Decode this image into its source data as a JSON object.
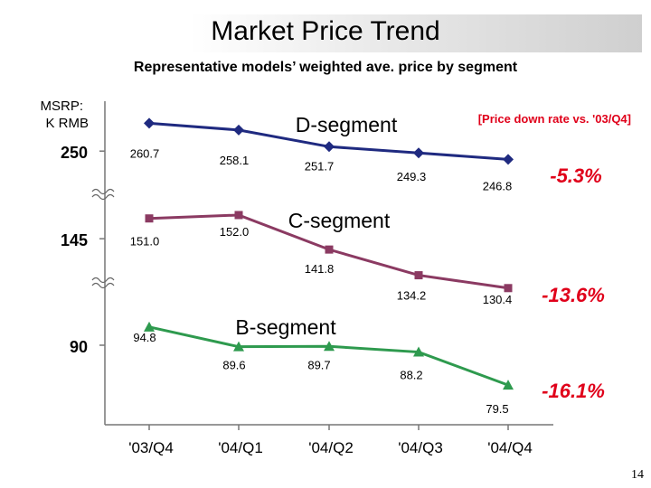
{
  "title": "Market Price Trend",
  "subtitle": "Representative models’ weighted ave. price by segment",
  "page_number": "14",
  "chart_data": {
    "type": "line",
    "title": "Market Price Trend",
    "subtitle": "Representative models’ weighted ave. price by segment",
    "ylabel": "MSRP:\nK RMB",
    "ylabel_lines": [
      "MSRP:",
      "K RMB"
    ],
    "y_ticks": [
      "250",
      "145",
      "90"
    ],
    "categories": [
      "'03/Q4",
      "'04/Q1",
      "'04/Q2",
      "'04/Q3",
      "'04/Q4"
    ],
    "note": "[Price down rate vs. '03/Q4]",
    "axis_break": true,
    "series": [
      {
        "name": "D-segment",
        "values": [
          260.7,
          258.1,
          251.7,
          249.3,
          246.8
        ],
        "labels": [
          "260.7",
          "258.1",
          "251.7",
          "249.3",
          "246.8"
        ],
        "down_rate": "-5.3%",
        "color": "#1f2a80",
        "marker": "diamond"
      },
      {
        "name": "C-segment",
        "values": [
          151.0,
          152.0,
          141.8,
          134.2,
          130.4
        ],
        "labels": [
          "151.0",
          "152.0",
          "141.8",
          "134.2",
          "130.4"
        ],
        "down_rate": "-13.6%",
        "color": "#8b3a62",
        "marker": "square"
      },
      {
        "name": "B-segment",
        "values": [
          94.8,
          89.6,
          89.7,
          88.2,
          79.5
        ],
        "labels": [
          "94.8",
          "89.6",
          "89.7",
          "88.2",
          "79.5"
        ],
        "down_rate": "-16.1%",
        "color": "#2e9a4e",
        "marker": "triangle"
      }
    ]
  }
}
